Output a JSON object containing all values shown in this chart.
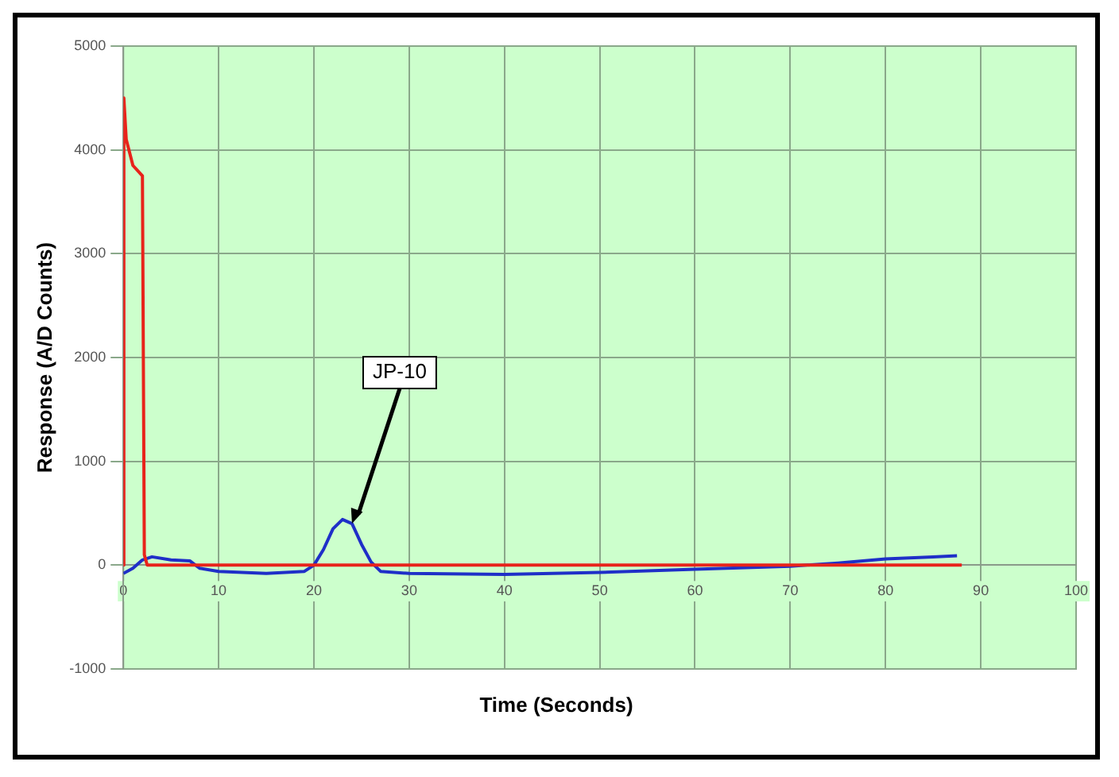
{
  "chart_data": {
    "type": "line",
    "xlabel": "Time (Seconds)",
    "ylabel": "Response (A/D Counts)",
    "xlim": [
      0,
      100
    ],
    "xticks": [
      0,
      10,
      20,
      30,
      40,
      50,
      60,
      70,
      80,
      90,
      100
    ],
    "ylim": [
      -1000,
      5000
    ],
    "yticks": [
      -1000,
      0,
      1000,
      2000,
      3000,
      4000,
      5000
    ],
    "grid": true,
    "legend": false,
    "marker": "none",
    "line_style": "solid",
    "series": [
      {
        "color": "#e8231b",
        "x": [
          0,
          0.05,
          0.3,
          1,
          2,
          2.2,
          2.5,
          10,
          20,
          30,
          40,
          50,
          60,
          70,
          80,
          88
        ],
        "values": [
          0,
          4500,
          4100,
          3850,
          3750,
          100,
          0,
          0,
          0,
          0,
          0,
          0,
          0,
          0,
          0,
          0
        ]
      },
      {
        "color": "#1f2fc8",
        "x": [
          0,
          1,
          2,
          3,
          5,
          7,
          8,
          10,
          15,
          19,
          20,
          21,
          22,
          23,
          24,
          25,
          26,
          27,
          30,
          40,
          50,
          60,
          70,
          75,
          80,
          85,
          87.5
        ],
        "values": [
          -80,
          -30,
          50,
          80,
          50,
          40,
          -30,
          -60,
          -80,
          -60,
          0,
          150,
          350,
          440,
          400,
          200,
          30,
          -60,
          -80,
          -90,
          -70,
          -40,
          -10,
          20,
          60,
          80,
          90
        ]
      }
    ],
    "annotations": [
      {
        "text": "JP-10",
        "x": 24,
        "y": 400
      }
    ]
  }
}
